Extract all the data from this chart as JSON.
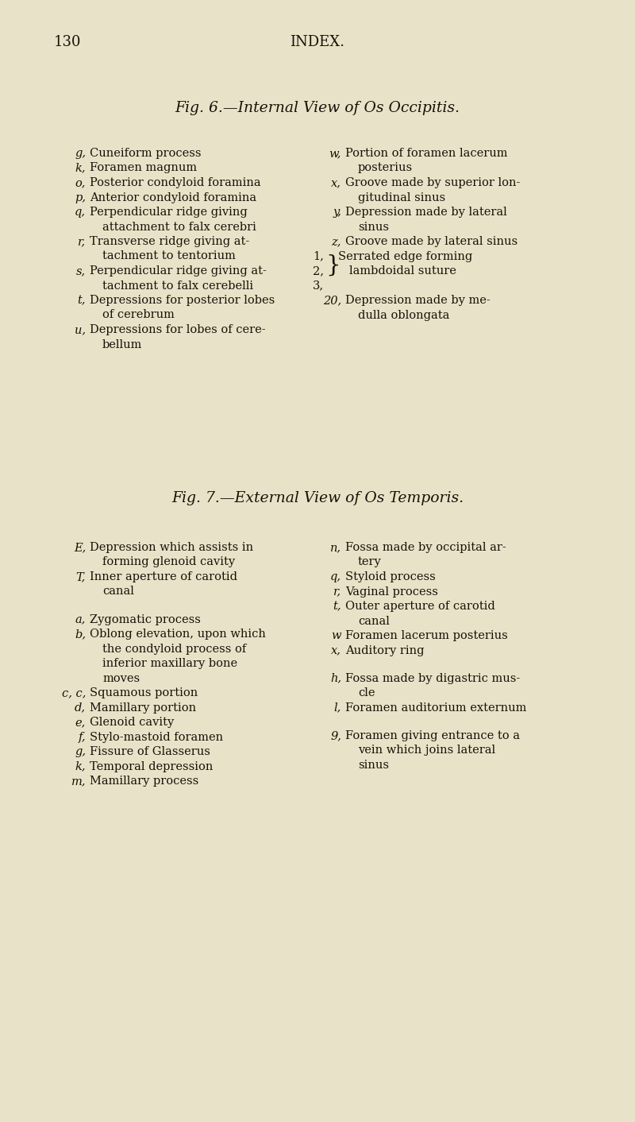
{
  "background_color": "#e8e3c8",
  "text_color": "#1a1008",
  "page_number": "130",
  "page_header": "INDEX.",
  "fig6_title": "Fig. 6.—Internal View of Os Occipitis.",
  "fig7_title": "Fig. 7.—External View of Os Temporis.",
  "font_size": 10.5,
  "title_font_size": 13.5,
  "header_font_size": 13
}
